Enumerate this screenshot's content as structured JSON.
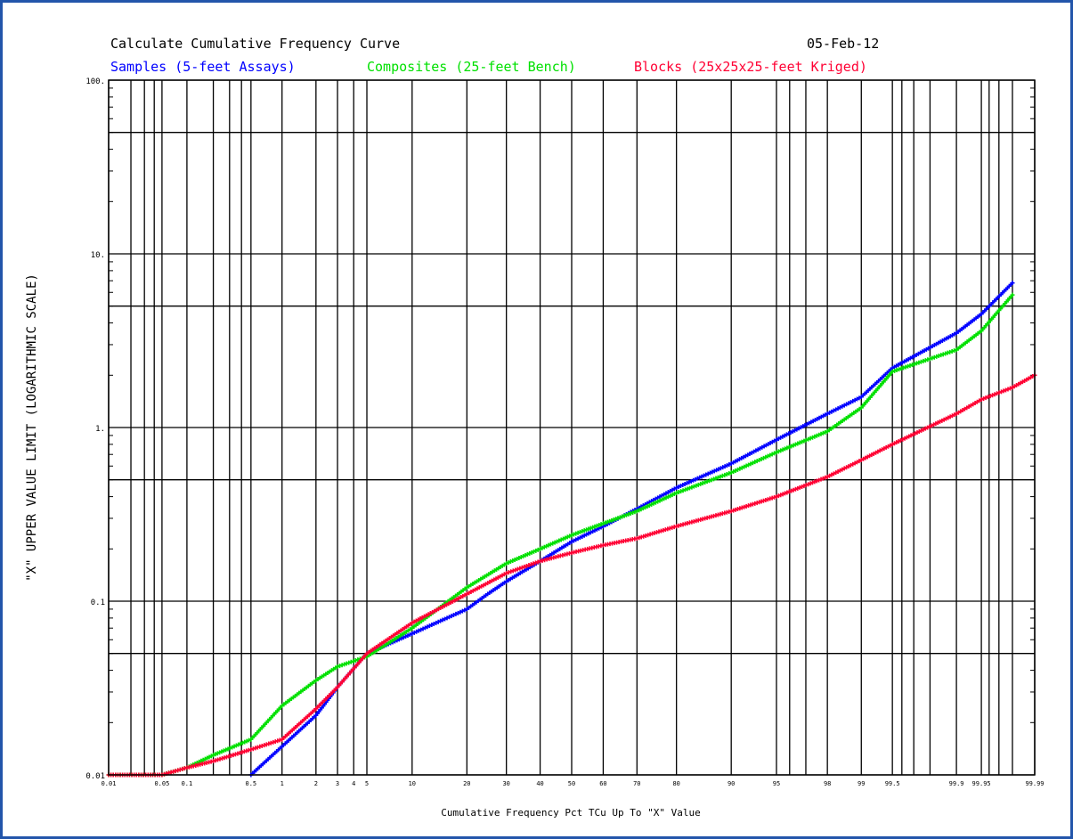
{
  "colors": {
    "samples": "#0000ff",
    "composites": "#00e000",
    "blocks": "#ff0033",
    "grid": "#000000",
    "frame": "#2255aa"
  },
  "chart_data": {
    "type": "scatter",
    "title": "Calculate Cumulative Frequency Curve",
    "date": "05-Feb-12",
    "xlabel": "Cumulative Frequency Pct TCu Up To \"X\" Value",
    "ylabel": "\"X\" UPPER VALUE LIMIT (LOGARITHMIC SCALE)",
    "x_scale": "probability",
    "y_scale": "log",
    "xlim": [
      0.01,
      99.99
    ],
    "ylim": [
      0.01,
      100
    ],
    "grid": true,
    "legend_position": "top",
    "x_ticks": [
      "0.01",
      "0.05",
      "0.1",
      "0.5",
      "1",
      "2",
      "3",
      "4",
      "5",
      "10",
      "20",
      "30",
      "40",
      "50",
      "60",
      "70",
      "80",
      "90",
      "95",
      "98",
      "99",
      "99.5",
      "99.9",
      "99.95",
      "99.99"
    ],
    "x_tick_values": [
      0.01,
      0.05,
      0.1,
      0.5,
      1,
      2,
      3,
      4,
      5,
      10,
      20,
      30,
      40,
      50,
      60,
      70,
      80,
      90,
      95,
      98,
      99,
      99.5,
      99.9,
      99.95,
      99.99
    ],
    "x_grid_values": [
      0.01,
      0.02,
      0.03,
      0.04,
      0.05,
      0.1,
      0.2,
      0.3,
      0.4,
      0.5,
      1,
      2,
      3,
      4,
      5,
      10,
      20,
      30,
      40,
      50,
      60,
      70,
      80,
      90,
      95,
      96,
      97,
      98,
      99,
      99.5,
      99.6,
      99.7,
      99.8,
      99.9,
      99.95,
      99.96,
      99.97,
      99.98,
      99.99
    ],
    "y_ticks": [
      "100.",
      "10.",
      "1.",
      "0.1",
      "0.01"
    ],
    "y_tick_values": [
      100,
      10,
      1,
      0.1,
      0.01
    ],
    "y_grid_values": [
      100,
      50,
      10,
      5,
      1,
      0.5,
      0.1,
      0.05,
      0.01
    ],
    "series": [
      {
        "name": "Samples (5-feet Assays)",
        "color": "#0000ff",
        "x": [
          0.5,
          2,
          3,
          5,
          10,
          15,
          20,
          25,
          30,
          40,
          50,
          60,
          70,
          80,
          90,
          95,
          98,
          99,
          99.5,
          99.9,
          99.95,
          99.98
        ],
        "y": [
          0.01,
          0.022,
          0.032,
          0.05,
          0.065,
          0.078,
          0.09,
          0.11,
          0.13,
          0.17,
          0.22,
          0.27,
          0.34,
          0.45,
          0.62,
          0.85,
          1.2,
          1.5,
          2.2,
          3.5,
          4.5,
          6.8
        ]
      },
      {
        "name": "Composites (25-feet Bench)",
        "color": "#00e000",
        "x": [
          0.01,
          0.05,
          0.1,
          0.2,
          0.5,
          1,
          2,
          3,
          5,
          10,
          20,
          30,
          40,
          50,
          60,
          70,
          80,
          90,
          95,
          98,
          99,
          99.5,
          99.9,
          99.95,
          99.98
        ],
        "y": [
          0.01,
          0.01,
          0.011,
          0.013,
          0.016,
          0.025,
          0.035,
          0.042,
          0.048,
          0.07,
          0.12,
          0.165,
          0.2,
          0.24,
          0.28,
          0.33,
          0.42,
          0.55,
          0.72,
          0.95,
          1.3,
          2.1,
          2.8,
          3.6,
          5.8
        ]
      },
      {
        "name": "Blocks (25x25x25-feet Kriged)",
        "color": "#ff0033",
        "x": [
          0.01,
          0.05,
          0.1,
          0.2,
          0.5,
          1,
          2,
          3,
          5,
          10,
          20,
          30,
          40,
          50,
          60,
          70,
          80,
          90,
          95,
          98,
          99,
          99.5,
          99.9,
          99.95,
          99.98,
          99.99
        ],
        "y": [
          0.01,
          0.01,
          0.011,
          0.012,
          0.014,
          0.016,
          0.024,
          0.032,
          0.05,
          0.075,
          0.11,
          0.145,
          0.17,
          0.19,
          0.21,
          0.23,
          0.27,
          0.33,
          0.4,
          0.52,
          0.65,
          0.8,
          1.2,
          1.45,
          1.7,
          2.0
        ]
      }
    ]
  }
}
